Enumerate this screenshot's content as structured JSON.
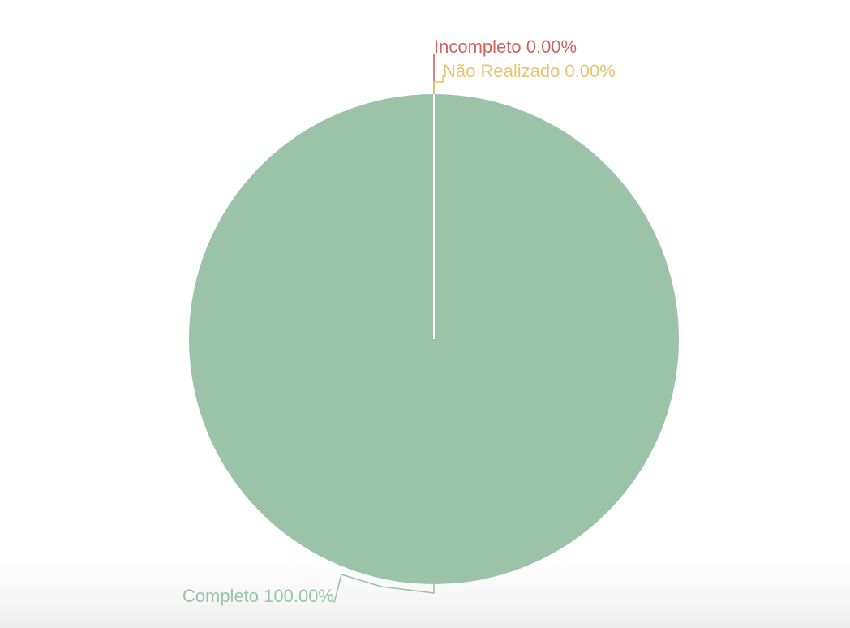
{
  "chart_data": {
    "type": "pie",
    "title": "",
    "slices": [
      {
        "label": "Completo",
        "value": 100.0,
        "display": "Completo 100.00%",
        "color": "#9bc3a9"
      },
      {
        "label": "Incompleto",
        "value": 0.0,
        "display": "Incompleto 0.00%",
        "color": "#d0635f"
      },
      {
        "label": "Não Realizado",
        "value": 0.0,
        "display": "Não Realizado 0.00%",
        "color": "#e8c46f"
      }
    ],
    "start_angle": "top",
    "direction": "clockwise",
    "legend": "none",
    "label_placement": "outside-with-leader-lines"
  }
}
